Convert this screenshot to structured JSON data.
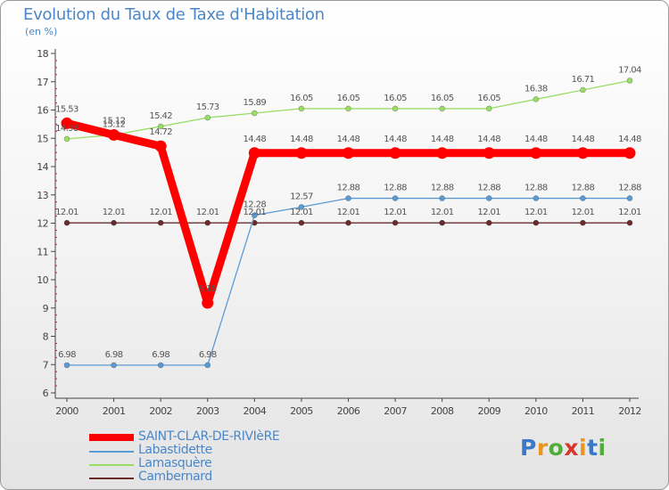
{
  "title": "Evolution du Taux de Taxe d'Habitation",
  "subtitle": "(en %)",
  "logo_text": "Proxiti",
  "colors": {
    "title": "#4a87c8",
    "saint_clar": "#ff0000",
    "labastidette": "#5b9bd5",
    "lamasquere": "#99dd66",
    "cambernard": "#6b2b2b"
  },
  "chart_data": {
    "type": "line",
    "title": "Evolution du Taux de Taxe d'Habitation",
    "ylabel": "(en %)",
    "x": [
      "2000",
      "2001",
      "2002",
      "2003",
      "2004",
      "2005",
      "2006",
      "2007",
      "2008",
      "2009",
      "2010",
      "2011",
      "2012"
    ],
    "ylim": [
      6,
      18
    ],
    "yticks": [
      6,
      7,
      8,
      9,
      10,
      11,
      12,
      13,
      14,
      15,
      16,
      17,
      18
    ],
    "grid": false,
    "legend_position": "bottom-left",
    "series": [
      {
        "name": "SAINT-CLAR-DE-RIVIèRE",
        "color": "#ff0000",
        "values": [
          15.53,
          15.12,
          14.72,
          9.18,
          14.48,
          14.48,
          14.48,
          14.48,
          14.48,
          14.48,
          14.48,
          14.48,
          14.48
        ],
        "labels": [
          "15.53",
          "15.12",
          "14.72",
          "9.18",
          "14.48",
          "14.48",
          "14.48",
          "14.48",
          "14.48",
          "14.48",
          "14.48",
          "14.48",
          "14.48"
        ]
      },
      {
        "name": "Labastidette",
        "color": "#5b9bd5",
        "values": [
          6.98,
          6.98,
          6.98,
          6.98,
          12.28,
          12.57,
          12.88,
          12.88,
          12.88,
          12.88,
          12.88,
          12.88,
          12.88
        ],
        "labels": [
          "6.98",
          "6.98",
          "6.98",
          "6.98",
          "12.28",
          "12.57",
          "12.88",
          "12.88",
          "12.88",
          "12.88",
          "12.88",
          "12.88",
          "12.88"
        ]
      },
      {
        "name": "Lamasquère",
        "color": "#99dd66",
        "values": [
          14.98,
          15.12,
          15.42,
          15.73,
          15.89,
          16.05,
          16.05,
          16.05,
          16.05,
          16.05,
          16.38,
          16.71,
          17.04
        ],
        "labels": [
          "14.98",
          "15.12",
          "15.42",
          "15.73",
          "15.89",
          "16.05",
          "16.05",
          "16.05",
          "16.05",
          "16.05",
          "16.38",
          "16.71",
          "17.04"
        ]
      },
      {
        "name": "Cambernard",
        "color": "#6b2b2b",
        "values": [
          12.01,
          12.01,
          12.01,
          12.01,
          12.01,
          12.01,
          12.01,
          12.01,
          12.01,
          12.01,
          12.01,
          12.01,
          12.01
        ],
        "labels": [
          "12.01",
          "12.01",
          "12.01",
          "12.01",
          "12.01",
          "12.01",
          "12.01",
          "12.01",
          "12.01",
          "12.01",
          "12.01",
          "12.01",
          "12.01"
        ]
      }
    ]
  },
  "legend": [
    {
      "label": "SAINT-CLAR-DE-RIVIèRE",
      "color": "#ff0000"
    },
    {
      "label": "Labastidette",
      "color": "#5b9bd5"
    },
    {
      "label": "Lamasquère",
      "color": "#99dd66"
    },
    {
      "label": "Cambernard",
      "color": "#6b2b2b"
    }
  ]
}
